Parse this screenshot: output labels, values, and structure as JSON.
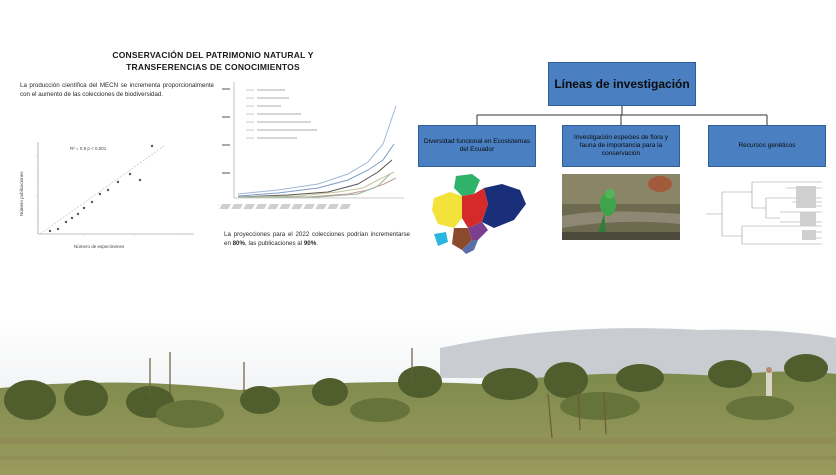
{
  "title": {
    "line1": "CONSERVACIÓN DEL PATRIMONIO NATURAL Y",
    "line2": "TRANSFERENCIAS DE CONOCIMIENTOS"
  },
  "left_text": "La producción científica del MECN se incrementa proporcionalmente con el aumento de las colecciones de biodiversidad.",
  "right_text": {
    "part1": "La proyecciones para el 2022 colecciones podrían incrementarse en ",
    "bold1": "80%",
    "part2": ", las publicaciones al ",
    "bold2": "90%",
    "part3": "."
  },
  "scatter_chart": {
    "type": "scatter",
    "annotation": "R² = 0.9 p < 0.001",
    "xlabel": "Número de especímenes",
    "ylabel": "Número publicaciones"
  },
  "research_lines": {
    "main": "Líneas de investigación",
    "items": [
      "Diversidad funcional en Ecosistemas del Ecuador",
      "Investigación especies de flora y fauna de importancia para la conservación",
      "Recursos genéticos"
    ]
  },
  "colors": {
    "box_blue": "#4a7fc1",
    "box_border": "#2e5d97"
  },
  "icons": {
    "map": "ecuador-regions-map-image",
    "bird": "green-parrot-photo",
    "tree": "phylogenetic-tree-image",
    "landscape": "dry-scrubland-landscape-photo"
  }
}
